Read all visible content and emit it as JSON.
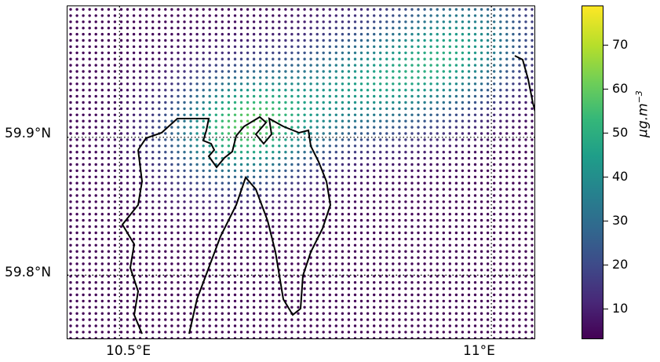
{
  "map": {
    "latitude_labels": [
      "59.9°N",
      "59.8°N"
    ],
    "longitude_labels": [
      "10.5°E",
      "11°E"
    ],
    "extent": {
      "lon_min": 10.43,
      "lon_max": 11.06,
      "lat_min": 59.753,
      "lat_max": 59.995
    },
    "gridlines": {
      "lons": [
        10.5,
        11.0
      ],
      "lats": [
        59.8,
        59.9
      ],
      "style": "dotted"
    },
    "point_grid": {
      "lon_step": 0.0085,
      "lat_step": 0.0045
    },
    "background_value": 4,
    "hotspots": [
      {
        "lon": 10.69,
        "lat": 59.912,
        "value": 75
      },
      {
        "lon": 10.82,
        "lat": 59.937,
        "value": 55
      },
      {
        "lon": 10.92,
        "lat": 59.95,
        "value": 50
      },
      {
        "lon": 10.98,
        "lat": 59.975,
        "value": 45
      },
      {
        "lon": 10.62,
        "lat": 59.9,
        "value": 40
      }
    ],
    "coastline_color": "#000000"
  },
  "colorbar": {
    "unit_label": "μg.m",
    "unit_exponent": "−3",
    "ticks": [
      10,
      20,
      30,
      40,
      50,
      60,
      70
    ],
    "range": [
      3,
      79
    ],
    "colormap": "viridis"
  }
}
